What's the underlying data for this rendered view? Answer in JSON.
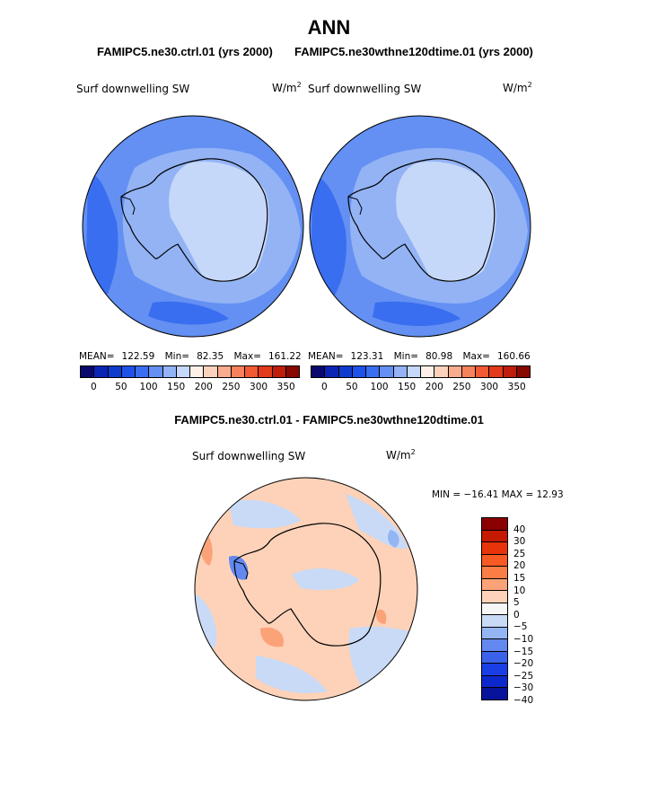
{
  "title": "ANN",
  "panels": [
    {
      "case": "FAMIPC5.ne30.ctrl.01 (yrs 2000)",
      "field": "Surf downwelling SW",
      "units_base": "W/m",
      "units_exp": "2",
      "mean_label": "MEAN=",
      "mean": "122.59",
      "min_label": "Min=",
      "min": "82.35",
      "max_label": "Max=",
      "max": "161.22"
    },
    {
      "case": "FAMIPC5.ne30wthne120dtime.01 (yrs 2000)",
      "field": "Surf downwelling SW",
      "units_base": "W/m",
      "units_exp": "2",
      "mean_label": "MEAN=",
      "mean": "123.31",
      "min_label": "Min=",
      "min": "80.98",
      "max_label": "Max=",
      "max": "160.66"
    }
  ],
  "abs_colorbar": {
    "colors": [
      "#08086e",
      "#0a24b4",
      "#0f3ccc",
      "#1f52e8",
      "#3a6ef0",
      "#6390f2",
      "#93b3f5",
      "#c6d8f9",
      "#fdf0e8",
      "#fcd2bc",
      "#f9ab8e",
      "#f6825c",
      "#f25a33",
      "#e23a1a",
      "#bf1e0c",
      "#880802"
    ],
    "ticks": [
      "0",
      "50",
      "100",
      "150",
      "200",
      "250",
      "300",
      "350"
    ]
  },
  "diff": {
    "title": "FAMIPC5.ne30.ctrl.01 - FAMIPC5.ne30wthne120dtime.01",
    "field": "Surf downwelling SW",
    "units_base": "W/m",
    "units_exp": "2",
    "stats": "MIN = −16.41  MAX =   12.93",
    "colorbar_colors": [
      "#8b0000",
      "#c41a00",
      "#e8340a",
      "#f75a22",
      "#fa7d45",
      "#fca279",
      "#fdd2b8",
      "#f6f6f6",
      "#c8daf6",
      "#94b5f3",
      "#6388f0",
      "#3c62ec",
      "#1a3ee6",
      "#0c28cc",
      "#06139a"
    ],
    "ticks": [
      "40",
      "30",
      "25",
      "20",
      "15",
      "10",
      "5",
      "0",
      "−5",
      "−10",
      "−15",
      "−20",
      "−25",
      "−30",
      "−40"
    ]
  }
}
